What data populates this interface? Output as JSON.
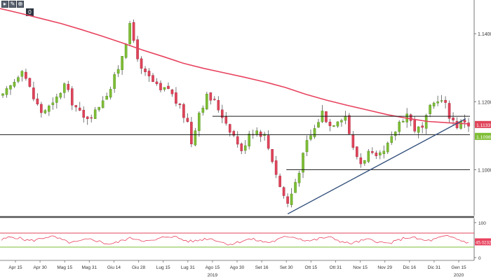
{
  "toolbar": {
    "icons": [
      "cursor-icon",
      "pencil-icon",
      "zoom-icon"
    ],
    "counter": "0"
  },
  "chart_data": {
    "type": "candlestick",
    "price_axis": {
      "ticks": [
        "1.1400",
        "1.1200",
        "1.1000"
      ],
      "tick_values": [
        1.14,
        1.12,
        1.1
      ],
      "range": [
        1.0865,
        1.1495
      ]
    },
    "price_labels": [
      {
        "text": "1.1133",
        "value": 1.1133,
        "color": "#e0445a"
      },
      {
        "text": "1.1098",
        "value": 1.1098,
        "color": "#7ebe35"
      }
    ],
    "moving_average": {
      "color": "#e8435f",
      "values": [
        1.1474,
        1.146,
        1.1445,
        1.143,
        1.1412,
        1.1393,
        1.1373,
        1.1352,
        1.1333,
        1.1313,
        1.1298,
        1.1285,
        1.1272,
        1.1258,
        1.1242,
        1.1222,
        1.1205,
        1.119,
        1.1176,
        1.1162,
        1.1151,
        1.1142,
        1.1138,
        1.1135
      ]
    },
    "horizontal_levels": [
      {
        "value": 1.1157,
        "from_x": "Ago 15",
        "to_x": "Gen 15"
      },
      {
        "value": 1.1103,
        "from_x": "Set 05",
        "to_x": "Gen 15"
      },
      {
        "value": 1.1,
        "from_x": "Set 30",
        "to_x": "Gen 15"
      }
    ],
    "trendline": {
      "from": {
        "x": "Set 30",
        "y": 1.087
      },
      "to": {
        "x": "Gen 15",
        "y": 1.115
      }
    },
    "x_ticks": [
      "Apr 15",
      "Apr 30",
      "Mag 15",
      "Mag 31",
      "Giu 14",
      "Giu 28",
      "Lug 15",
      "Lug 31",
      "Ago 15",
      "Ago 30",
      "Set 16",
      "Set 30",
      "Ott 15",
      "Ott 31",
      "Nov 15",
      "Nov 29",
      "Dic 16",
      "Dic 31",
      "Gen 15"
    ],
    "year_labels": [
      {
        "text": "2019",
        "near": "Ago 15"
      },
      {
        "text": "2020",
        "near": "Gen 15"
      }
    ],
    "oscillator": {
      "ticks": [
        "100",
        "0"
      ],
      "range": [
        0,
        100
      ],
      "overbought": 70,
      "oversold": 30,
      "current": 45.0232,
      "current_label": "45.0232",
      "line_color": "#e8435f",
      "overbought_color": "#e0445a",
      "oversold_color": "#7ebe35"
    }
  }
}
